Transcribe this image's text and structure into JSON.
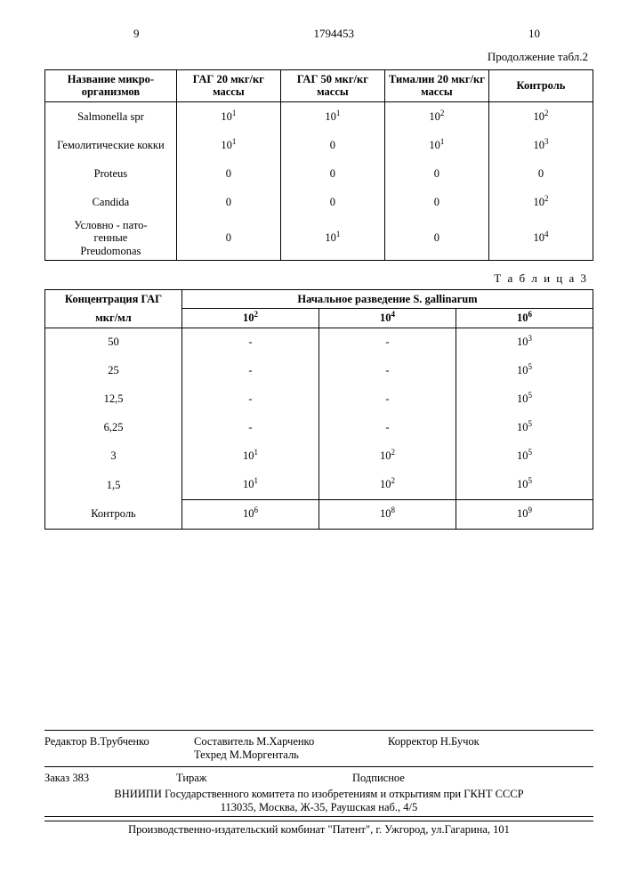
{
  "page": {
    "col_left_num": "9",
    "doc_number": "1794453",
    "col_right_num": "10",
    "continuation_caption": "Продолжение табл.2",
    "table3_caption": "Т а б л и ц а 3"
  },
  "table2": {
    "headers": {
      "organism": "Название микро-\nорганизмов",
      "gag20": "ГАГ 20 мкг/кг массы",
      "gag50": "ГАГ 50 мкг/кг массы",
      "timalin20": "Тималин 20 мкг/кг массы",
      "control": "Контроль"
    },
    "rows": [
      {
        "organism": "Salmonella spr",
        "gag20_base": "10",
        "gag20_exp": "1",
        "gag50_base": "10",
        "gag50_exp": "1",
        "timalin_base": "10",
        "timalin_exp": "2",
        "control_base": "10",
        "control_exp": "2"
      },
      {
        "organism": "Гемолитические кокки",
        "gag20_base": "10",
        "gag20_exp": "1",
        "gag50_base": "0",
        "gag50_exp": "",
        "timalin_base": "10",
        "timalin_exp": "1",
        "control_base": "10",
        "control_exp": "3"
      },
      {
        "organism": "Proteus",
        "gag20_base": "0",
        "gag20_exp": "",
        "gag50_base": "0",
        "gag50_exp": "",
        "timalin_base": "0",
        "timalin_exp": "",
        "control_base": "0",
        "control_exp": ""
      },
      {
        "organism": "Candida",
        "gag20_base": "0",
        "gag20_exp": "",
        "gag50_base": "0",
        "gag50_exp": "",
        "timalin_base": "0",
        "timalin_exp": "",
        "control_base": "10",
        "control_exp": "2"
      },
      {
        "organism": "Условно - пато-\nгенные\nPreudomonas",
        "gag20_base": "0",
        "gag20_exp": "",
        "gag50_base": "10",
        "gag50_exp": "1",
        "timalin_base": "0",
        "timalin_exp": "",
        "control_base": "10",
        "control_exp": "4"
      }
    ]
  },
  "table3": {
    "headers": {
      "col1_top": "Концентрация ГАГ",
      "col1_sub": "мкг/мл",
      "span_header": "Начальное разведение S. gallinarum",
      "d2_base": "10",
      "d2_exp": "2",
      "d4_base": "10",
      "d4_exp": "4",
      "d6_base": "10",
      "d6_exp": "6"
    },
    "rows": [
      {
        "conc": "50",
        "d2_base": "-",
        "d2_exp": "",
        "d4_base": "-",
        "d4_exp": "",
        "d6_base": "10",
        "d6_exp": "3"
      },
      {
        "conc": "25",
        "d2_base": "-",
        "d2_exp": "",
        "d4_base": "-",
        "d4_exp": "",
        "d6_base": "10",
        "d6_exp": "5"
      },
      {
        "conc": "12,5",
        "d2_base": "-",
        "d2_exp": "",
        "d4_base": "-",
        "d4_exp": "",
        "d6_base": "10",
        "d6_exp": "5"
      },
      {
        "conc": "6,25",
        "d2_base": "-",
        "d2_exp": "",
        "d4_base": "-",
        "d4_exp": "",
        "d6_base": "10",
        "d6_exp": "5"
      },
      {
        "conc": "3",
        "d2_base": "10",
        "d2_exp": "1",
        "d4_base": "10",
        "d4_exp": "2",
        "d6_base": "10",
        "d6_exp": "5"
      },
      {
        "conc": "1,5",
        "d2_base": "10",
        "d2_exp": "1",
        "d4_base": "10",
        "d4_exp": "2",
        "d6_base": "10",
        "d6_exp": "5"
      },
      {
        "conc": "Контроль",
        "d2_base": "10",
        "d2_exp": "6",
        "d4_base": "10",
        "d4_exp": "8",
        "d6_base": "10",
        "d6_exp": "9"
      }
    ]
  },
  "pub": {
    "editor_label": "Редактор",
    "editor_name": "В.Трубченко",
    "compiler_label": "Составитель",
    "compiler_name": "М.Харченко",
    "techred_label": "Техред",
    "techred_name": "М.Моргенталь",
    "corrector_label": "Корректор",
    "corrector_name": "Н.Бучок",
    "order_label": "Заказ",
    "order_num": "383",
    "tirazh_label": "Тираж",
    "podpis_label": "Подписное",
    "vniipi_line": "ВНИИПИ Государственного комитета по изобретениям и открытиям при ГКНТ СССР",
    "address_line": "113035, Москва, Ж-35, Раушская наб., 4/5",
    "printer_line": "Производственно-издательский комбинат \"Патент\", г. Ужгород, ул.Гагарина, 101"
  }
}
